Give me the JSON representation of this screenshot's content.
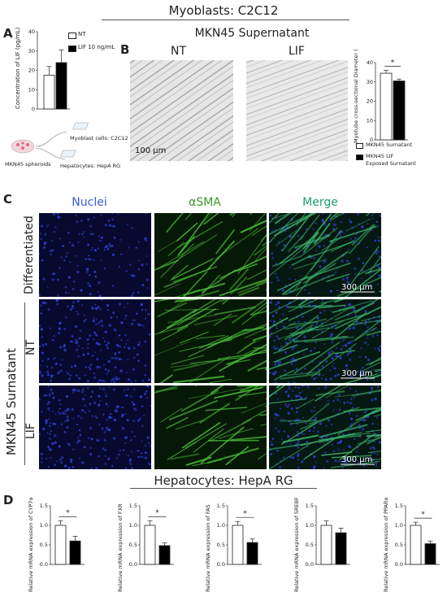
{
  "headers": {
    "myoblasts": "Myoblasts: C2C12",
    "hepatocytes": "Hepatocytes: HepA RG"
  },
  "panels": {
    "a": "A",
    "b": "B",
    "c": "C",
    "d": "D"
  },
  "panel_a": {
    "legend_nt": "NT",
    "legend_lif": "LIF 10 ng/mL",
    "schematic": {
      "spheroids": "MKN45 spheroids",
      "myoblast": "Myoblast cells: C2C12",
      "hepatocytes": "Hepatocytes: HepA RG"
    }
  },
  "panel_b": {
    "title": "MKN45 Supernatant",
    "label_nt": "NT",
    "label_lif": "LIF",
    "scale": "100 µm",
    "legend_nt": "MKN45 Surnatant",
    "legend_lif_1": "MKN45 LIF",
    "legend_lif_2": "Exposed Surnatant"
  },
  "panel_c": {
    "col_nuclei": "Nuclei",
    "col_asma": "αSMA",
    "col_merge": "Merge",
    "row_diff": "Differentiated",
    "row_nt": "NT",
    "row_lif": "LIF",
    "group_label": "MKN45 Surnatant",
    "scale": "300 µm",
    "colors": {
      "nuclei": "#3a5bd9",
      "asma": "#3a9a28",
      "merge": "#1f9e6a"
    }
  },
  "chart_data": [
    {
      "id": "A-LIF",
      "type": "bar",
      "ylabel": "Concentration of LIF (pg/mL)",
      "ylim": [
        0,
        40
      ],
      "yticks": [
        "0",
        "10",
        "20",
        "30",
        "40"
      ],
      "series": [
        {
          "name": "NT",
          "value": 17.5,
          "err": 4.5,
          "fill": "#ffffff"
        },
        {
          "name": "LIF 10 ng/mL",
          "value": 24,
          "err": 6.5,
          "fill": "#000000"
        }
      ]
    },
    {
      "id": "B-diameter",
      "type": "bar",
      "ylabel": "Myotube cross-sectional Diameter (µm)",
      "ylim": [
        0,
        40
      ],
      "yticks": [
        "0",
        "10",
        "20",
        "30",
        "40"
      ],
      "sig": "*",
      "series": [
        {
          "name": "MKN45 Surnatant",
          "value": 34.5,
          "err": 1.5,
          "fill": "#ffffff"
        },
        {
          "name": "MKN45 LIF Exposed Surnatant",
          "value": 30.5,
          "err": 1.0,
          "fill": "#000000"
        }
      ]
    },
    {
      "id": "D-CYP7a1",
      "type": "bar",
      "ylabel": "Relative mRNA expression of CYP7α1",
      "ylim": [
        0,
        1.5
      ],
      "yticks": [
        "0.0",
        "0.5",
        "1.0",
        "1.5"
      ],
      "sig": "*",
      "series": [
        {
          "value": 1.0,
          "err": 0.12,
          "fill": "#ffffff"
        },
        {
          "value": 0.6,
          "err": 0.12,
          "fill": "#000000"
        }
      ]
    },
    {
      "id": "D-FXR",
      "type": "bar",
      "ylabel": "Relative mRNA expression of FXR",
      "ylim": [
        0,
        1.5
      ],
      "yticks": [
        "0.0",
        "0.5",
        "1.0",
        "1.5"
      ],
      "sig": "*",
      "series": [
        {
          "value": 1.0,
          "err": 0.12,
          "fill": "#ffffff"
        },
        {
          "value": 0.48,
          "err": 0.07,
          "fill": "#000000"
        }
      ]
    },
    {
      "id": "D-FAS",
      "type": "bar",
      "ylabel": "Relative mRNA expression of FAS",
      "ylim": [
        0,
        1.5
      ],
      "yticks": [
        "0.0",
        "0.5",
        "1.0",
        "1.5"
      ],
      "sig": "*",
      "series": [
        {
          "value": 1.0,
          "err": 0.1,
          "fill": "#ffffff"
        },
        {
          "value": 0.56,
          "err": 0.09,
          "fill": "#000000"
        }
      ]
    },
    {
      "id": "D-SREBP1c",
      "type": "bar",
      "ylabel": "Relative mRNA expression of SREBP1c",
      "ylim": [
        0,
        1.5
      ],
      "yticks": [
        "0.0",
        "0.5",
        "1.0",
        "1.5"
      ],
      "sig": "",
      "series": [
        {
          "value": 1.0,
          "err": 0.12,
          "fill": "#ffffff"
        },
        {
          "value": 0.81,
          "err": 0.12,
          "fill": "#000000"
        }
      ]
    },
    {
      "id": "D-PPARa",
      "type": "bar",
      "ylabel": "Relative mRNA expression of PPARα",
      "ylim": [
        0,
        1.5
      ],
      "yticks": [
        "0.0",
        "0.5",
        "1.0",
        "1.5"
      ],
      "sig": "*",
      "series": [
        {
          "value": 1.0,
          "err": 0.08,
          "fill": "#ffffff"
        },
        {
          "value": 0.53,
          "err": 0.07,
          "fill": "#000000"
        }
      ]
    }
  ]
}
